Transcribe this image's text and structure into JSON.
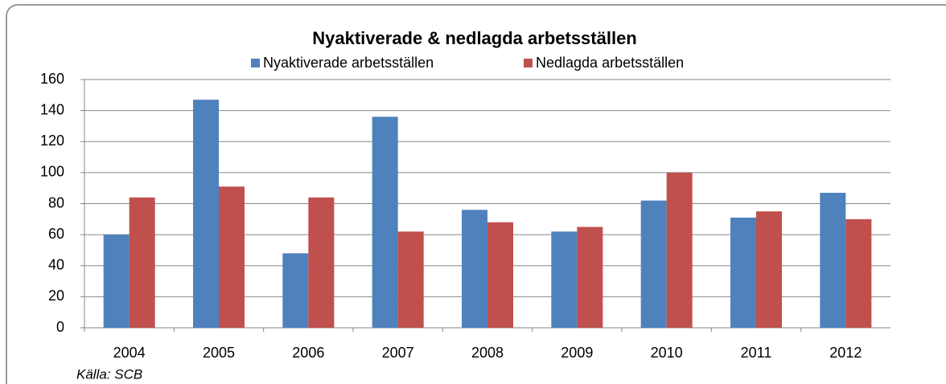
{
  "chart_data": {
    "type": "bar",
    "title": "Nyaktiverade & nedlagda arbetsställen",
    "categories": [
      "2004",
      "2005",
      "2006",
      "2007",
      "2008",
      "2009",
      "2010",
      "2011",
      "2012"
    ],
    "series": [
      {
        "name": "Nyaktiverade arbetsställen",
        "color": "#4f81bd",
        "values": [
          60,
          147,
          48,
          136,
          76,
          62,
          82,
          71,
          87
        ]
      },
      {
        "name": "Nedlagda arbetsställen",
        "color": "#c0504d",
        "values": [
          84,
          91,
          84,
          62,
          68,
          65,
          100,
          75,
          70
        ]
      }
    ],
    "ylim": [
      0,
      160
    ],
    "yticks": [
      0,
      20,
      40,
      60,
      80,
      100,
      120,
      140,
      160
    ],
    "grid": true,
    "source": "Källa: SCB"
  }
}
